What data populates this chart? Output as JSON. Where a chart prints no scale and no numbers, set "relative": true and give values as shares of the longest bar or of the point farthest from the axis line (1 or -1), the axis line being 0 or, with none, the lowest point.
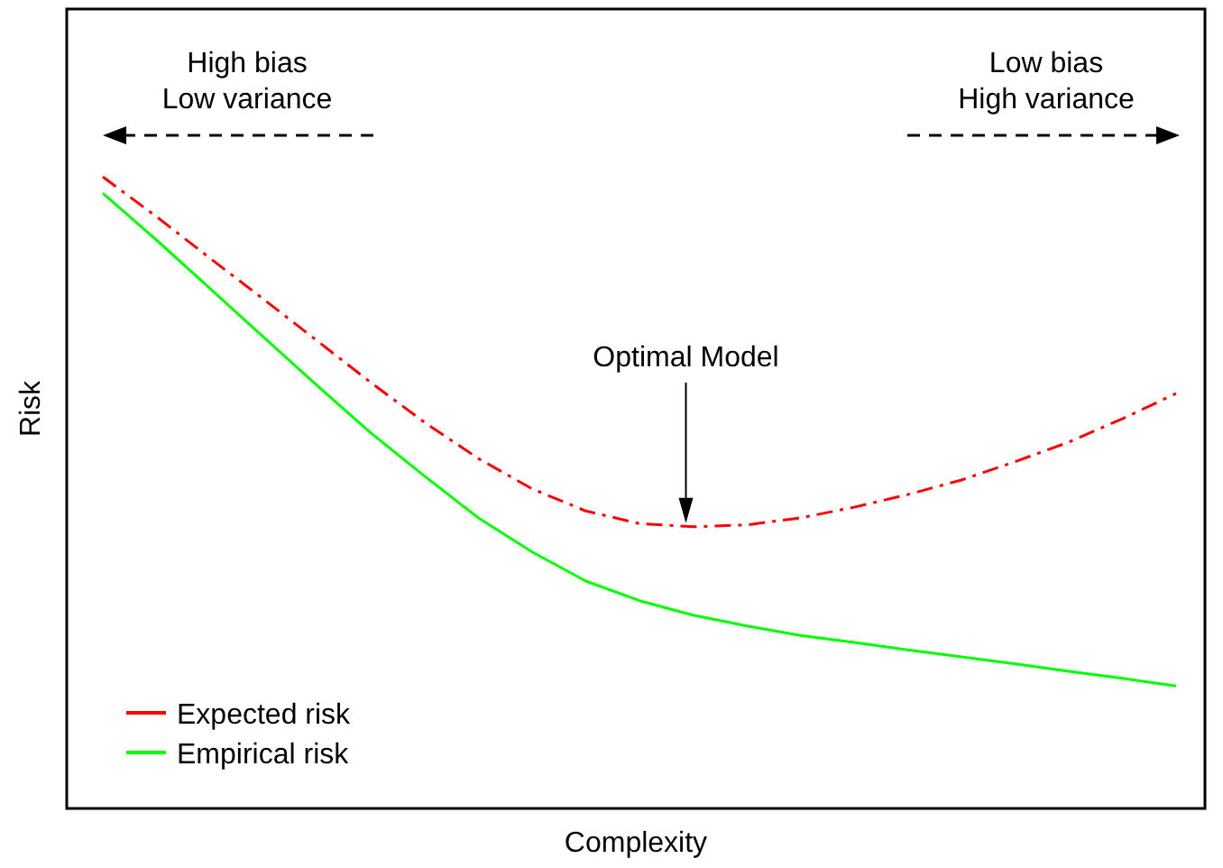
{
  "chart_data": {
    "type": "line",
    "relative": true,
    "xlabel": "Complexity",
    "ylabel": "Risk",
    "legend": "bottom left",
    "categories": [
      null,
      null,
      null,
      null,
      null,
      null,
      null,
      null,
      null,
      null,
      null,
      null,
      null,
      null,
      null,
      null,
      null,
      null,
      null,
      null,
      null
    ],
    "series": [
      {
        "name": "Expected risk",
        "color": "#ff0000",
        "line_style": "dashed",
        "values": [
          1,
          0.937,
          0.871,
          0.806,
          0.74,
          0.674,
          0.611,
          0.554,
          0.506,
          0.471,
          0.451,
          0.446,
          0.449,
          0.46,
          0.477,
          0.497,
          0.52,
          0.549,
          0.58,
          0.617,
          0.657
        ]
      },
      {
        "name": "Empirical risk",
        "color": "#00ff00",
        "line_style": "solid",
        "values": [
          0.974,
          0.9,
          0.823,
          0.746,
          0.669,
          0.594,
          0.526,
          0.46,
          0.406,
          0.36,
          0.329,
          0.306,
          0.289,
          0.274,
          0.263,
          0.251,
          0.24,
          0.229,
          0.217,
          0.206,
          0.194
        ]
      }
    ],
    "annotations": [
      "High bias\nLow variance",
      "Low bias\nHigh variance",
      "Optimal Model"
    ]
  }
}
